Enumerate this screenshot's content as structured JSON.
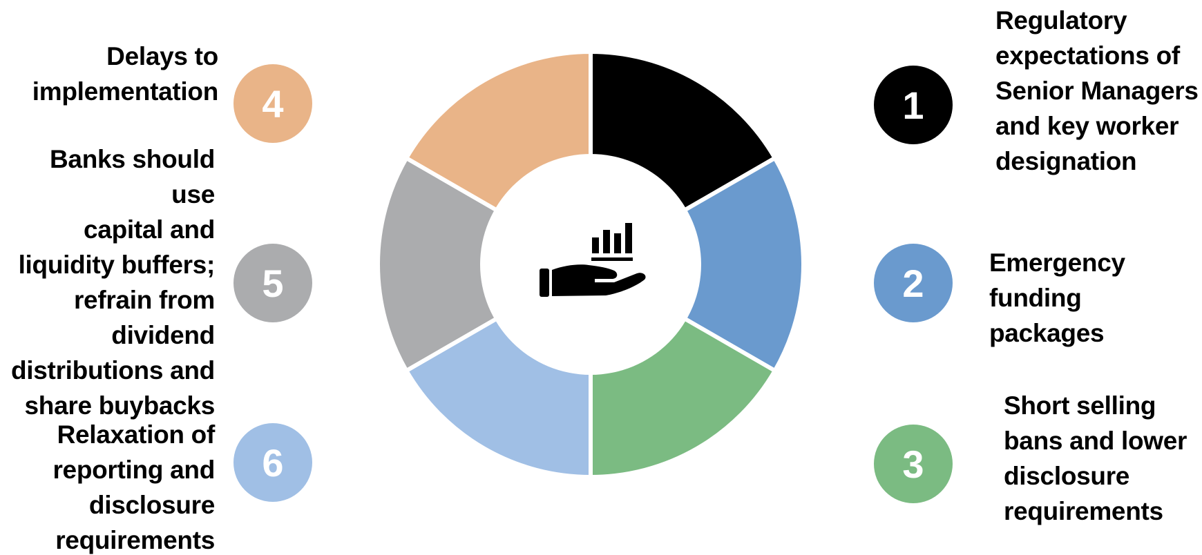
{
  "colors": {
    "segment_1": "#000000",
    "segment_2": "#6a9ace",
    "segment_3": "#7bbb82",
    "segment_4": "#e9b488",
    "segment_5": "#abacae",
    "segment_6": "#a0bfe5",
    "number_text": "#ffffff",
    "label_text": "#000000"
  },
  "center": {
    "icon": "hand-holding-bar-chart-icon"
  },
  "items": [
    {
      "number": "1",
      "label": "Regulatory\nexpectations of\nSenior Managers\nand key worker\ndesignation"
    },
    {
      "number": "2",
      "label": "Emergency\nfunding packages"
    },
    {
      "number": "3",
      "label": "Short selling\nbans and lower\ndisclosure\nrequirements"
    },
    {
      "number": "4",
      "label": "Delays to\nimplementation"
    },
    {
      "number": "5",
      "label": "Banks should use\ncapital and\nliquidity buffers;\nrefrain from\ndividend\ndistributions and\nshare buybacks"
    },
    {
      "number": "6",
      "label": "Relaxation of\nreporting and\ndisclosure\nrequirements"
    }
  ]
}
